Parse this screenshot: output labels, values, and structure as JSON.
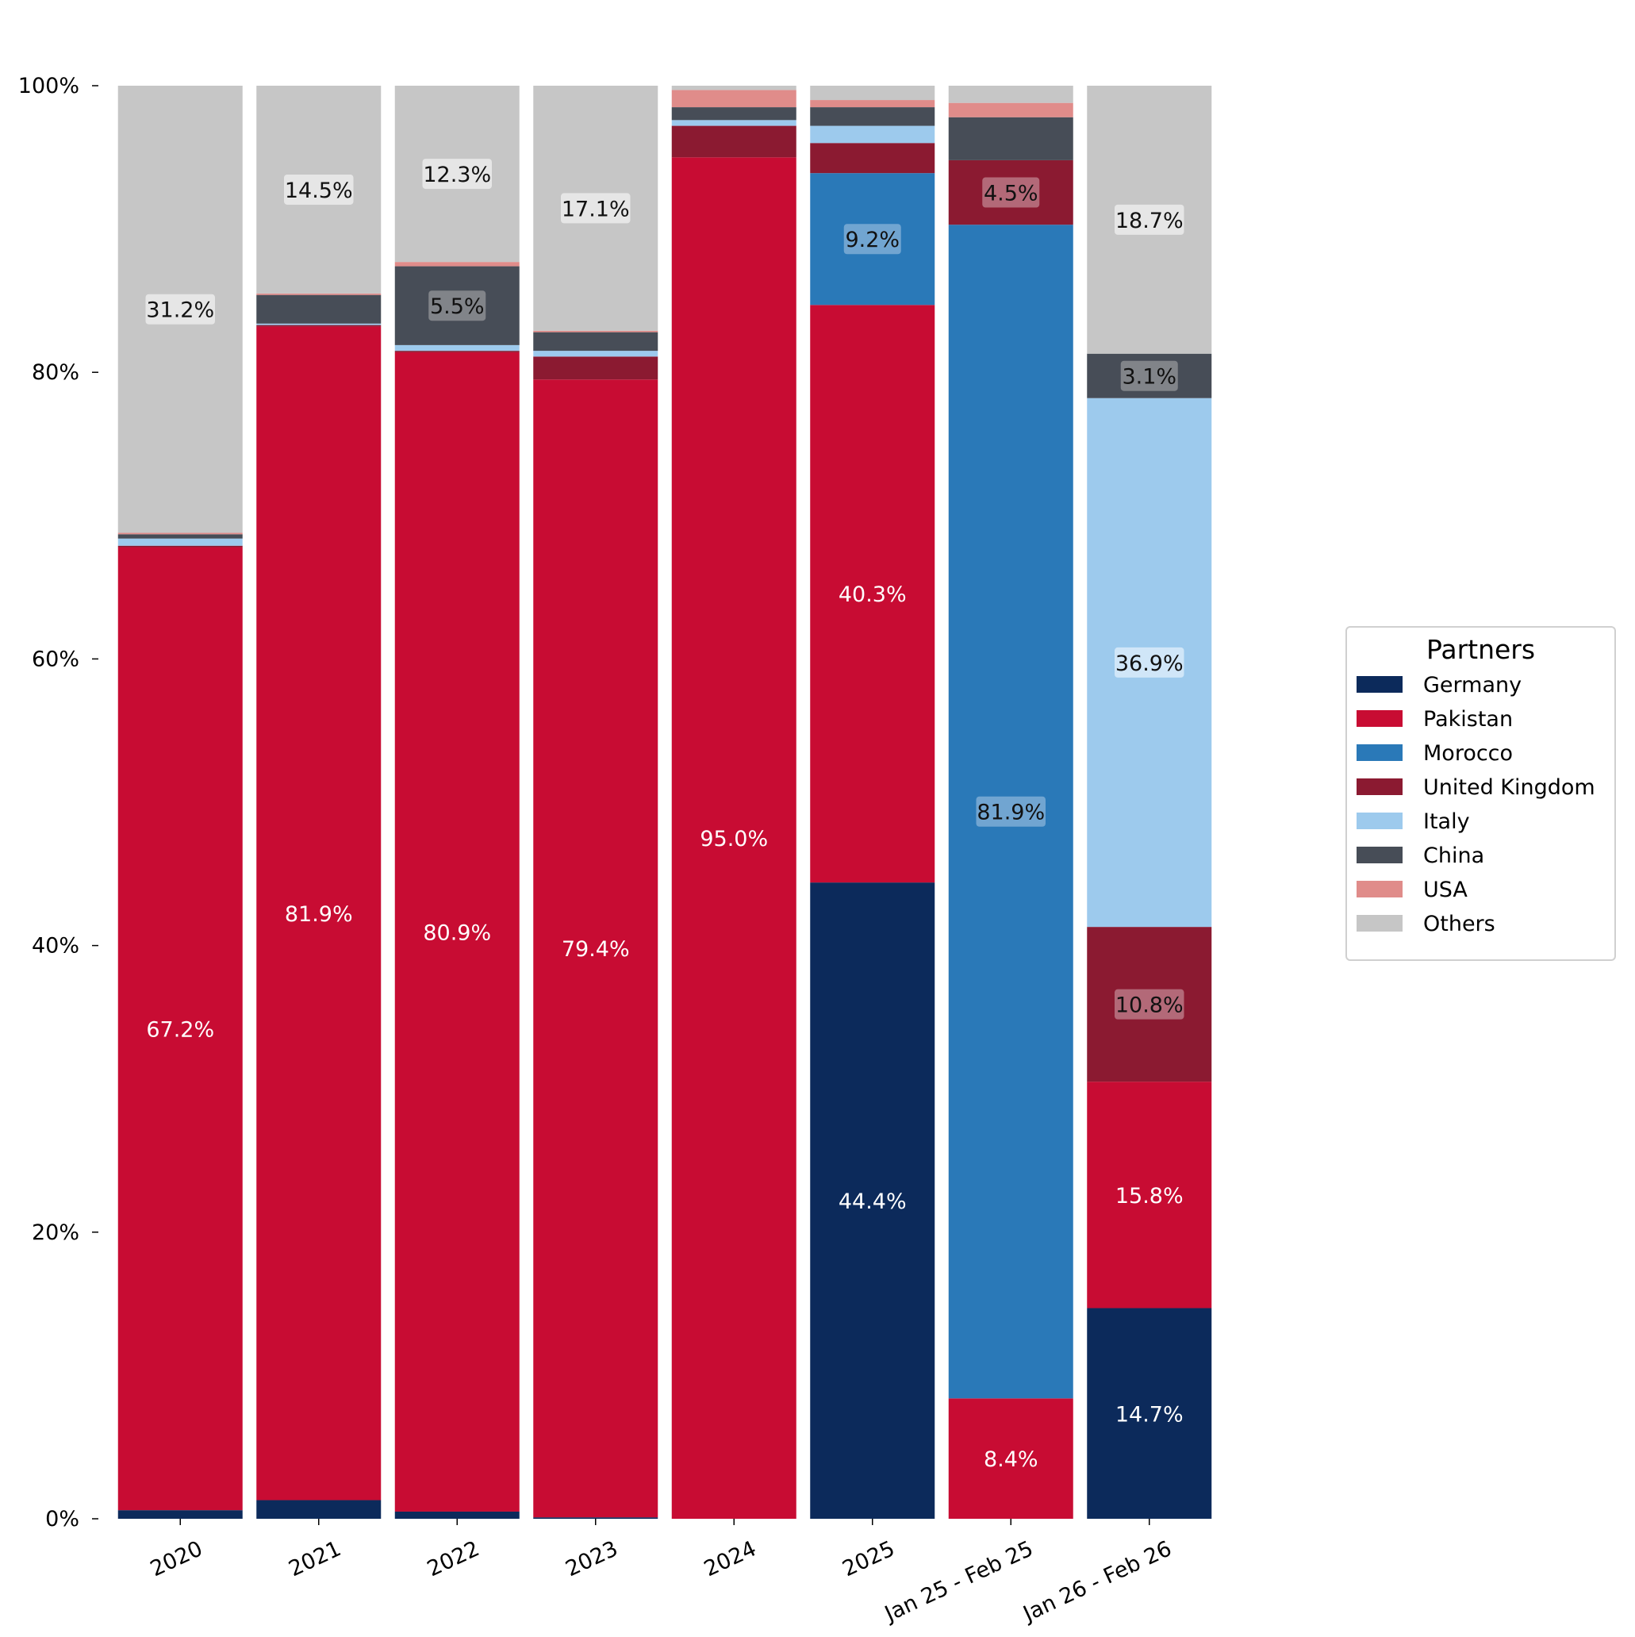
{
  "chart_data": {
    "type": "bar",
    "stacked": true,
    "normalized": true,
    "categories": [
      "2020",
      "2021",
      "2022",
      "2023",
      "2024",
      "2025",
      "Jan 25 - Feb 25",
      "Jan 26 - Feb 26"
    ],
    "series": [
      {
        "name": "Germany",
        "color": "#0c2a5b",
        "values": [
          0.6,
          1.3,
          0.5,
          0.1,
          0.0,
          44.4,
          0.0,
          14.7
        ]
      },
      {
        "name": "Pakistan",
        "color": "#c80c33",
        "values": [
          67.2,
          81.9,
          80.9,
          79.4,
          95.0,
          40.3,
          8.4,
          15.8
        ]
      },
      {
        "name": "Morocco",
        "color": "#2a79b8",
        "values": [
          0.0,
          0.0,
          0.0,
          0.0,
          0.0,
          9.2,
          81.9,
          0.0
        ]
      },
      {
        "name": "United Kingdom",
        "color": "#8b1a31",
        "values": [
          0.1,
          0.1,
          0.1,
          1.6,
          2.2,
          2.1,
          4.5,
          10.8
        ]
      },
      {
        "name": "Italy",
        "color": "#9dcaed",
        "values": [
          0.5,
          0.1,
          0.4,
          0.4,
          0.4,
          1.2,
          0.0,
          36.9
        ]
      },
      {
        "name": "China",
        "color": "#474d57",
        "values": [
          0.3,
          2.0,
          5.5,
          1.3,
          0.9,
          1.3,
          3.0,
          3.1
        ]
      },
      {
        "name": "USA",
        "color": "#e08c8a",
        "values": [
          0.1,
          0.1,
          0.3,
          0.1,
          1.2,
          0.5,
          1.0,
          0.0
        ]
      },
      {
        "name": "Others",
        "color": "#c6c6c6",
        "values": [
          31.2,
          14.5,
          12.3,
          17.1,
          0.3,
          1.0,
          1.2,
          18.7
        ]
      }
    ],
    "data_labels": [
      {
        "category": "2020",
        "series": "Pakistan",
        "text": "67.2%"
      },
      {
        "category": "2020",
        "series": "Others",
        "text": "31.2%"
      },
      {
        "category": "2021",
        "series": "Pakistan",
        "text": "81.9%"
      },
      {
        "category": "2021",
        "series": "Others",
        "text": "14.5%"
      },
      {
        "category": "2022",
        "series": "Pakistan",
        "text": "80.9%"
      },
      {
        "category": "2022",
        "series": "China",
        "text": "5.5%"
      },
      {
        "category": "2022",
        "series": "Others",
        "text": "12.3%"
      },
      {
        "category": "2023",
        "series": "Pakistan",
        "text": "79.4%"
      },
      {
        "category": "2023",
        "series": "Others",
        "text": "17.1%"
      },
      {
        "category": "2024",
        "series": "Pakistan",
        "text": "95.0%"
      },
      {
        "category": "2025",
        "series": "Germany",
        "text": "44.4%"
      },
      {
        "category": "2025",
        "series": "Pakistan",
        "text": "40.3%"
      },
      {
        "category": "2025",
        "series": "Morocco",
        "text": "9.2%"
      },
      {
        "category": "Jan 25 - Feb 25",
        "series": "Pakistan",
        "text": "8.4%"
      },
      {
        "category": "Jan 25 - Feb 25",
        "series": "Morocco",
        "text": "81.9%"
      },
      {
        "category": "Jan 25 - Feb 25",
        "series": "United Kingdom",
        "text": "4.5%"
      },
      {
        "category": "Jan 26 - Feb 26",
        "series": "Germany",
        "text": "14.7%"
      },
      {
        "category": "Jan 26 - Feb 26",
        "series": "Pakistan",
        "text": "15.8%"
      },
      {
        "category": "Jan 26 - Feb 26",
        "series": "United Kingdom",
        "text": "10.8%"
      },
      {
        "category": "Jan 26 - Feb 26",
        "series": "Italy",
        "text": "36.9%"
      },
      {
        "category": "Jan 26 - Feb 26",
        "series": "China",
        "text": "3.1%"
      },
      {
        "category": "Jan 26 - Feb 26",
        "series": "Others",
        "text": "18.7%"
      }
    ],
    "yticks": [
      "0%",
      "20%",
      "40%",
      "60%",
      "80%",
      "100%"
    ],
    "ylim": [
      0,
      100
    ],
    "grid": false,
    "legend": {
      "title": "Partners",
      "placement": "center-right, outside plot"
    },
    "title": "",
    "xlabel": "",
    "ylabel": ""
  }
}
